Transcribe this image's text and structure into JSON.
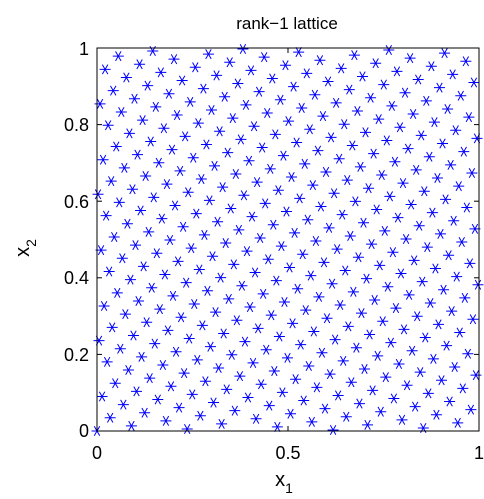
{
  "chart_data": {
    "type": "scatter",
    "title": "rank−1 lattice",
    "xlabel": "x",
    "xlabel_sub": "1",
    "ylabel": "x",
    "ylabel_sub": "2",
    "xlim": [
      0,
      1
    ],
    "ylim": [
      0,
      1
    ],
    "xticks": [
      "0",
      "0.5",
      "1"
    ],
    "yticks": [
      "0",
      "0.2",
      "0.4",
      "0.6",
      "0.8",
      "1"
    ],
    "grid": false,
    "marker": "asterisk",
    "color": "#0000ff",
    "lattice": {
      "n": 377,
      "z": [
        1,
        233
      ]
    }
  }
}
